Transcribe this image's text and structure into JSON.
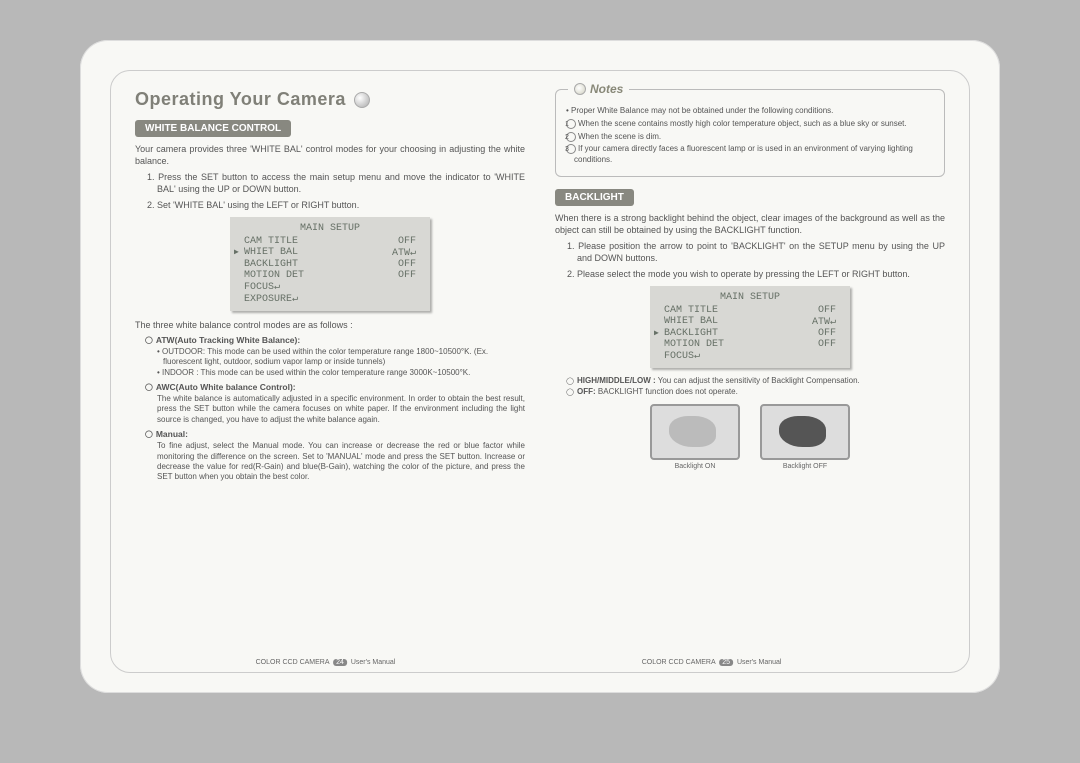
{
  "page_title": "Operating Your Camera",
  "left": {
    "section_header": "WHITE BALANCE CONTROL",
    "intro": "Your camera provides three 'WHITE BAL' control modes for your choosing in adjusting the white balance.",
    "steps": [
      "1. Press the SET button to access the main setup menu and move the indicator to 'WHITE BAL' using the UP or DOWN button.",
      "2. Set 'WHITE BAL' using the LEFT or RIGHT button."
    ],
    "osd": {
      "title": "MAIN SETUP",
      "rows": [
        {
          "label": "CAM TITLE",
          "val": "OFF",
          "sel": false
        },
        {
          "label": "WHIET BAL",
          "val": "ATW↵",
          "sel": true
        },
        {
          "label": "BACKLIGHT",
          "val": "OFF",
          "sel": false
        },
        {
          "label": "MOTION DET",
          "val": "OFF",
          "sel": false
        },
        {
          "label": "FOCUS↵",
          "val": "",
          "sel": false
        },
        {
          "label": "EXPOSURE↵",
          "val": "",
          "sel": false
        }
      ]
    },
    "modes_intro": "The three white balance control modes are as follows :",
    "modes": [
      {
        "head": "ATW(Auto Tracking White Balance):",
        "body_lines": [
          "• OUTDOOR: This mode can be used within the color temperature range 1800~10500°K. (Ex. fluorescent light, outdoor, sodium vapor lamp or inside tunnels)",
          "• INDOOR : This mode can be used within the color temperature range 3000K~10500°K."
        ]
      },
      {
        "head": "AWC(Auto White balance Control):",
        "body": "The white balance is automatically adjusted in a specific environment. In order to obtain the best result, press the SET button while the camera focuses on white paper. If the environment including the light source is changed, you have to adjust the white balance again."
      },
      {
        "head": "Manual:",
        "body": "To fine adjust, select the Manual mode. You can increase or decrease the red or blue factor while monitoring the difference on the screen. Set to 'MANUAL' mode and press the SET button. Increase or decrease the value for red(R-Gain) and blue(B-Gain), watching the color of the picture, and press the SET button when you obtain the best color."
      }
    ],
    "footer": {
      "product": "COLOR CCD CAMERA",
      "page": "24",
      "tail": "User's Manual"
    }
  },
  "right": {
    "notes": {
      "label": "Notes",
      "intro": "• Proper White Balance may not be obtained under the following conditions.",
      "items": [
        "When the scene contains mostly high color temperature object, such as a blue sky or sunset.",
        "When the scene is dim.",
        "If your camera directly faces a fluorescent lamp or is used in an environment of varying lighting conditions."
      ]
    },
    "section_header": "BACKLIGHT",
    "intro": "When there is a strong backlight behind the object, clear images of the background as well as the object can still be obtained by using the BACKLIGHT function.",
    "steps": [
      "1. Please position the arrow to point to 'BACKLIGHT' on the SETUP menu by using the UP and DOWN buttons.",
      "2. Please select the mode you wish to operate by pressing the LEFT or RIGHT button."
    ],
    "osd": {
      "title": "MAIN SETUP",
      "rows": [
        {
          "label": "CAM TITLE",
          "val": "OFF",
          "sel": false
        },
        {
          "label": "WHIET BAL",
          "val": "ATW↵",
          "sel": false
        },
        {
          "label": "BACKLIGHT",
          "val": "OFF",
          "sel": true
        },
        {
          "label": "MOTION DET",
          "val": "OFF",
          "sel": false
        },
        {
          "label": "FOCUS↵",
          "val": "",
          "sel": false
        }
      ]
    },
    "opts": [
      {
        "head": "HIGH/MIDDLE/LOW :",
        "body": "You can adjust the sensitivity of Backlight Compensation."
      },
      {
        "head": "OFF:",
        "body": "BACKLIGHT function does not operate."
      }
    ],
    "images": [
      {
        "cap": "Backlight ON",
        "class": "tv-on"
      },
      {
        "cap": "Backlight OFF",
        "class": "tv-off"
      }
    ],
    "footer": {
      "product": "COLOR CCD CAMERA",
      "page": "25",
      "tail": "User's Manual"
    }
  }
}
